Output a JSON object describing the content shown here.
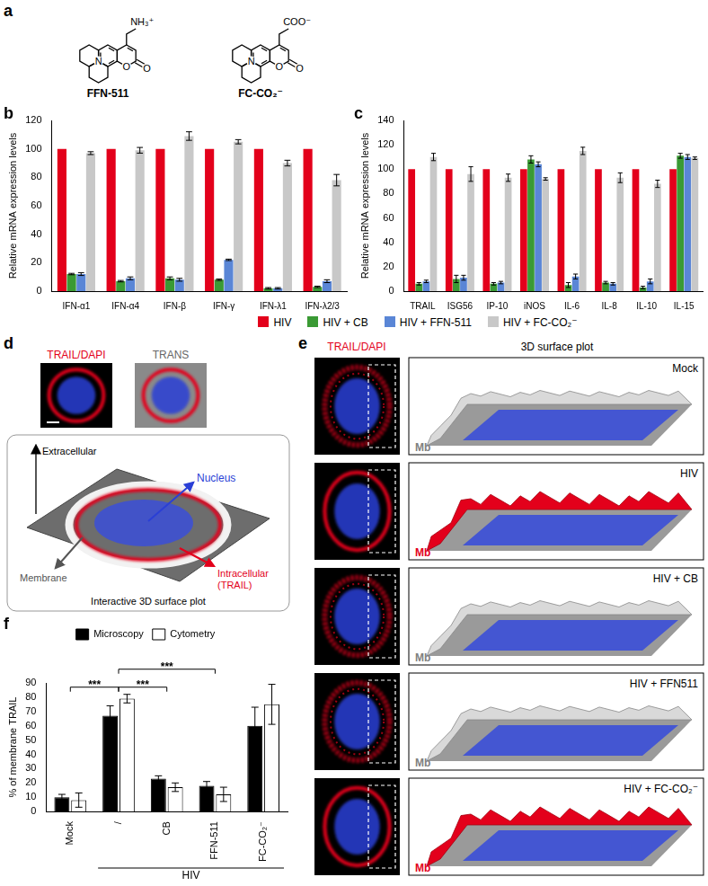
{
  "panel_a": {
    "label": "a",
    "molecules": [
      {
        "name": "FFN-511",
        "substituent": "NH₃⁺",
        "atoms": [
          "N",
          "O",
          "O"
        ]
      },
      {
        "name": "FC-CO₂⁻",
        "substituent": "COO⁻",
        "atoms": [
          "N",
          "O",
          "O"
        ]
      }
    ]
  },
  "chart_data": [
    {
      "panel": "b",
      "type": "bar",
      "y_label": "Relative mRNA expression levels",
      "categories": [
        "IFN-α1",
        "IFN-α4",
        "IFN-β",
        "IFN-γ",
        "IFN-λ1",
        "IFN-λ2/3"
      ],
      "series": [
        {
          "name": "HIV",
          "color": "#e3001b",
          "values": [
            100,
            100,
            100,
            100,
            100,
            100
          ]
        },
        {
          "name": "HIV + CB",
          "color": "#3a9a34",
          "values": [
            12,
            7,
            9,
            8,
            2,
            3
          ],
          "errors": [
            0.5,
            0.5,
            1,
            0.5,
            0.5,
            0.5
          ]
        },
        {
          "name": "HIV + FFN-511",
          "color": "#5a86d6",
          "values": [
            12,
            9,
            8,
            22,
            2,
            7
          ],
          "errors": [
            1,
            1,
            1,
            0.5,
            0.5,
            1
          ]
        },
        {
          "name": "HIV + FC-CO₂⁻",
          "color": "#c8c8c8",
          "values": [
            97,
            99,
            109,
            105,
            90,
            78
          ],
          "errors": [
            1,
            2,
            3,
            1.5,
            2,
            4
          ]
        }
      ],
      "ylim": [
        0,
        120
      ],
      "yticks": [
        0,
        20,
        40,
        60,
        80,
        100,
        120
      ],
      "grid": false
    },
    {
      "panel": "c",
      "type": "bar",
      "y_label": "Relative mRNA expression levels",
      "categories": [
        "TRAIL",
        "ISG56",
        "IP-10",
        "iNOS",
        "IL-6",
        "IL-8",
        "IL-10",
        "IL-15"
      ],
      "series": [
        {
          "name": "HIV",
          "color": "#e3001b",
          "values": [
            100,
            100,
            100,
            100,
            100,
            100,
            100,
            100
          ]
        },
        {
          "name": "HIV + CB",
          "color": "#3a9a34",
          "values": [
            6,
            10,
            6,
            108,
            5,
            7,
            3,
            111
          ],
          "errors": [
            1,
            3,
            1,
            3,
            2,
            1,
            1,
            2
          ]
        },
        {
          "name": "HIV + FFN-511",
          "color": "#5a86d6",
          "values": [
            8,
            11,
            7,
            104,
            12,
            6,
            8,
            110
          ],
          "errors": [
            1,
            2,
            1,
            2,
            2,
            1,
            2,
            2
          ]
        },
        {
          "name": "HIV + FC-CO₂⁻",
          "color": "#c8c8c8",
          "values": [
            110,
            96,
            93,
            92,
            115,
            93,
            88,
            109
          ],
          "errors": [
            3,
            6,
            3,
            1,
            3,
            4,
            3,
            1
          ]
        }
      ],
      "ylim": [
        0,
        140
      ],
      "yticks": [
        0,
        20,
        40,
        60,
        80,
        100,
        120,
        140
      ],
      "grid": false,
      "legend": "bottom"
    },
    {
      "panel": "f",
      "type": "bar",
      "y_label": "% of membrane TRAIL",
      "categories": [
        "Mock",
        "/",
        "CB",
        "FFN-511",
        "FC-CO₂⁻"
      ],
      "category_group": {
        "label": "HIV",
        "from": "/",
        "to": "FC-CO₂⁻"
      },
      "series": [
        {
          "name": "Microscopy",
          "color": "#000000",
          "values": [
            10,
            67,
            23,
            18,
            60
          ],
          "errors": [
            2,
            7,
            2,
            3,
            13
          ]
        },
        {
          "name": "Cytometry",
          "color": "#ffffff",
          "values": [
            8,
            79,
            17,
            12,
            75
          ],
          "errors": [
            5,
            3,
            3,
            5,
            14
          ]
        }
      ],
      "annotations": [
        {
          "from": "Mock",
          "to": "/",
          "label": "***"
        },
        {
          "from": "/",
          "to": "CB",
          "label": "***"
        },
        {
          "from": "/",
          "to": "FFN-511",
          "label": "***"
        }
      ],
      "ylim": [
        0,
        90
      ],
      "yticks": [
        0,
        10,
        20,
        30,
        40,
        50,
        60,
        70,
        80,
        90
      ],
      "grid": false,
      "legend": "top"
    }
  ],
  "panel_d": {
    "label": "d",
    "image_labels": [
      "TRAIL/DAPI",
      "TRANS"
    ],
    "annotations": {
      "extracellular": "Extracellular",
      "nucleus": "Nucleus",
      "membrane": "Membrane",
      "intracellular": [
        "Intracellular",
        "(TRAIL)"
      ]
    },
    "caption": "Interactive 3D surface plot"
  },
  "panel_e": {
    "label": "e",
    "headers": [
      "TRAIL/DAPI",
      "3D surface plot"
    ],
    "rows": [
      {
        "condition": "Mock",
        "mb_label": "Mb",
        "mb_color": "#808080"
      },
      {
        "condition": "HIV",
        "mb_label": "Mb",
        "mb_color": "#e3001b"
      },
      {
        "condition": "HIV + CB",
        "mb_label": "Mb",
        "mb_color": "#808080"
      },
      {
        "condition": "HIV + FFN511",
        "mb_label": "Mb",
        "mb_color": "#808080"
      },
      {
        "condition": "HIV + FC-CO₂⁻",
        "mb_label": "Mb",
        "mb_color": "#e3001b"
      }
    ]
  }
}
